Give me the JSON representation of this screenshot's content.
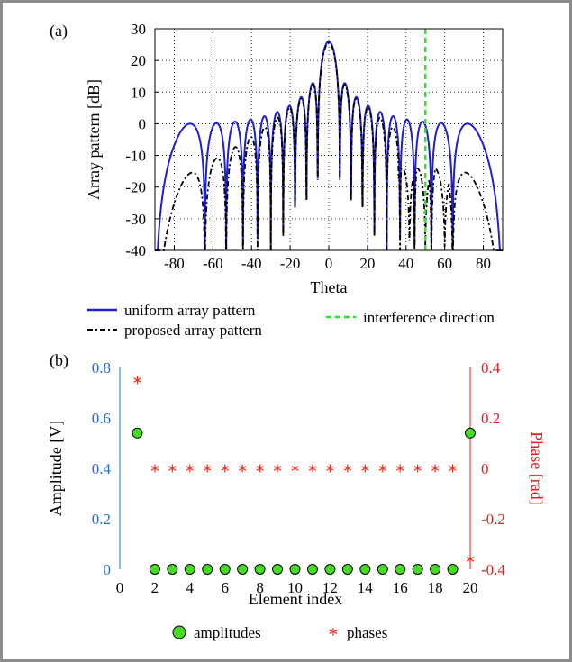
{
  "chart_data": [
    {
      "panel": "(a)",
      "type": "line",
      "title": "",
      "xlabel": "Theta",
      "ylabel": "Array pattern [dB]",
      "xlim": [
        -90,
        90
      ],
      "ylim": [
        -40,
        30
      ],
      "xticks": [
        -80,
        -60,
        -40,
        -20,
        0,
        20,
        40,
        60,
        80
      ],
      "yticks": [
        -40,
        -30,
        -20,
        -10,
        0,
        10,
        20,
        30
      ],
      "grid": true,
      "legend_placement": "below",
      "n_elements": 20,
      "series": [
        {
          "name": "uniform array pattern",
          "color": "#1f1fd0",
          "style": "solid",
          "peak_db": 26,
          "sidelobe_level_db": 0
        },
        {
          "name": "proposed array pattern",
          "color": "#000000",
          "style": "dash-dot",
          "peak_db": 25.5,
          "sidelobe_level_db_far": -9,
          "null_at_deg": 50
        },
        {
          "name": "interference direction",
          "color": "#33e033",
          "style": "dashed",
          "x": 50
        }
      ]
    },
    {
      "panel": "(b)",
      "type": "scatter",
      "title": "",
      "xlabel": "Element index",
      "ylabel_left": "Amplitude [V]",
      "ylabel_right": "Phase [rad]",
      "xlim": [
        0,
        20
      ],
      "ylim_left": [
        0,
        0.8
      ],
      "ylim_right": [
        -0.4,
        0.4
      ],
      "xticks": [
        0,
        2,
        4,
        6,
        8,
        10,
        12,
        14,
        16,
        18,
        20
      ],
      "yticks_left": [
        "0",
        "0.2",
        "0.4",
        "0.6",
        "0.8"
      ],
      "yticks_right": [
        "-0.4",
        "-0.2",
        "0",
        "0.2",
        "0.4"
      ],
      "left_axis_color": "#1f6fd0",
      "right_axis_color": "#e02020",
      "legend_placement": "below",
      "x": [
        1,
        2,
        3,
        4,
        5,
        6,
        7,
        8,
        9,
        10,
        11,
        12,
        13,
        14,
        15,
        16,
        17,
        18,
        19,
        20
      ],
      "series": [
        {
          "name": "amplitudes",
          "axis": "left",
          "marker": "circle",
          "color": "#44dd22",
          "values": [
            0.54,
            0,
            0,
            0,
            0,
            0,
            0,
            0,
            0,
            0,
            0,
            0,
            0,
            0,
            0,
            0,
            0,
            0,
            0,
            0.54
          ]
        },
        {
          "name": "phases",
          "axis": "right",
          "marker": "asterisk",
          "color": "#ff2a1a",
          "values": [
            0.35,
            0,
            0,
            0,
            0,
            0,
            0,
            0,
            0,
            0,
            0,
            0,
            0,
            0,
            0,
            0,
            0,
            0,
            0,
            -0.36
          ]
        }
      ]
    }
  ]
}
